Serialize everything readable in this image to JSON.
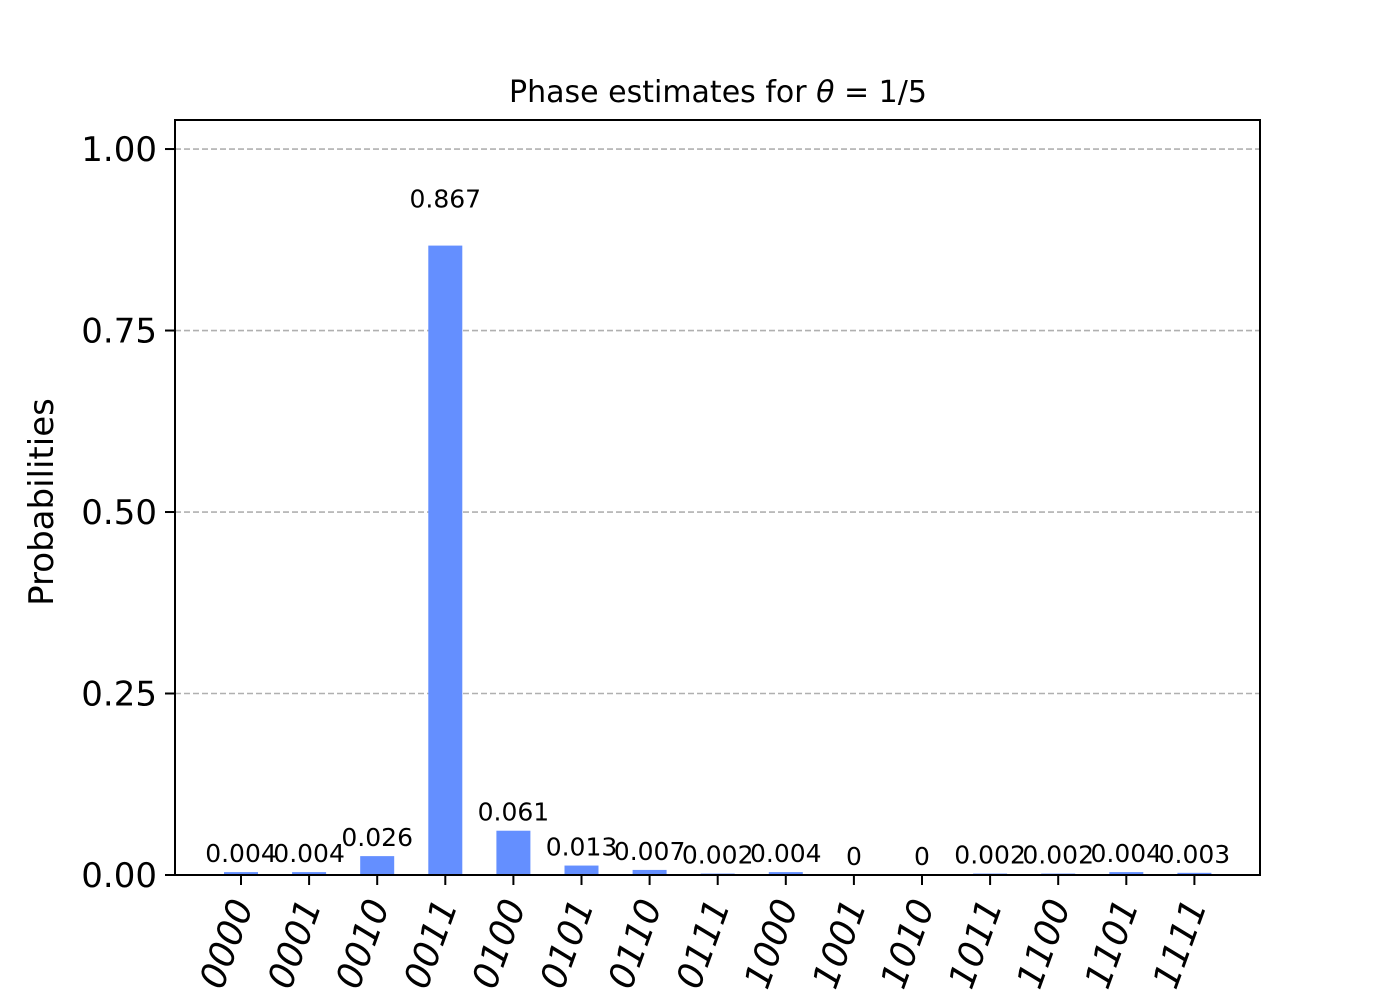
{
  "chart_data": {
    "type": "bar",
    "title": "Phase estimates for θ = 1/5",
    "title_prefix": "Phase estimates for ",
    "title_symbol": "θ",
    "title_suffix": " = 1/5",
    "xlabel": "",
    "ylabel": "Probabilities",
    "ylim": [
      0,
      1.04
    ],
    "yticks": [
      0.0,
      0.25,
      0.5,
      0.75,
      1.0
    ],
    "ytick_labels": [
      "0.00",
      "0.25",
      "0.50",
      "0.75",
      "1.00"
    ],
    "grid": "horizontal dashed",
    "legend": "none",
    "bar_color": "#648fff",
    "categories": [
      "0000",
      "0001",
      "0010",
      "0011",
      "0100",
      "0101",
      "0110",
      "0111",
      "1000",
      "1001",
      "1010",
      "1011",
      "1100",
      "1101",
      "1111"
    ],
    "values": [
      0.004,
      0.004,
      0.026,
      0.867,
      0.061,
      0.013,
      0.007,
      0.002,
      0.004,
      0,
      0,
      0.002,
      0.002,
      0.004,
      0.003
    ],
    "value_labels": [
      "0.004",
      "0.004",
      "0.026",
      "0.867",
      "0.061",
      "0.013",
      "0.007",
      "0.002",
      "0.004",
      "0",
      "0",
      "0.002",
      "0.002",
      "0.004",
      "0.003"
    ]
  }
}
